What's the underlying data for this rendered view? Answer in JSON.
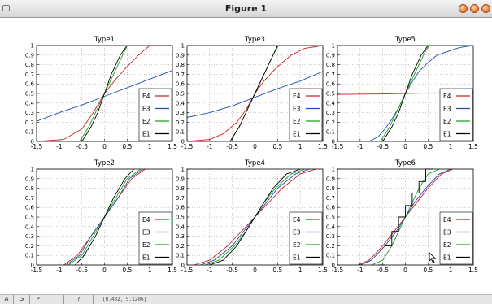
{
  "window": {
    "title": "Figure 1"
  },
  "statusbar": {
    "buttons": [
      "A",
      "G",
      "P",
      "",
      "?"
    ],
    "coords": "[0.432, 5.1206]"
  },
  "colors": {
    "E1": "#000000",
    "E2": "#1aa51a",
    "E3": "#1f4fb0",
    "E4": "#d42020"
  },
  "chart_data": [
    {
      "type": "line",
      "title": "Type1",
      "xlim": [
        -1.5,
        1.5
      ],
      "ylim": [
        0,
        1
      ],
      "xticks": [
        -1.5,
        -1,
        -0.5,
        0,
        0.5,
        1,
        1.5
      ],
      "yticks": [
        0,
        0.1,
        0.2,
        0.3,
        0.4,
        0.5,
        0.6,
        0.7,
        0.8,
        0.9,
        1
      ],
      "grid": true,
      "legend": "bottom-right",
      "series": [
        {
          "name": "E4",
          "x": [
            -1.5,
            -0.9,
            -0.5,
            -0.25,
            0,
            0.25,
            0.5,
            0.75,
            1,
            1.5
          ],
          "y": [
            0,
            0.02,
            0.13,
            0.3,
            0.5,
            0.65,
            0.78,
            0.9,
            1,
            1
          ]
        },
        {
          "name": "E3",
          "x": [
            -1.5,
            -1,
            -0.5,
            0,
            0.5,
            1,
            1.5
          ],
          "y": [
            0.21,
            0.3,
            0.38,
            0.47,
            0.56,
            0.65,
            0.74
          ]
        },
        {
          "name": "E2",
          "x": [
            -0.55,
            -0.35,
            -0.2,
            0,
            0.2,
            0.4,
            0.5
          ],
          "y": [
            0,
            0.15,
            0.3,
            0.5,
            0.7,
            0.9,
            1
          ]
        },
        {
          "name": "E1",
          "x": [
            -0.5,
            -0.3,
            -0.15,
            0,
            0.15,
            0.35,
            0.5
          ],
          "y": [
            0,
            0.15,
            0.3,
            0.5,
            0.7,
            0.9,
            1
          ]
        }
      ]
    },
    {
      "type": "line",
      "title": "Type3",
      "xlim": [
        -1.5,
        1.5
      ],
      "ylim": [
        0,
        1
      ],
      "xticks": [
        -1.5,
        -1,
        -0.5,
        0,
        0.5,
        1,
        1.5
      ],
      "yticks": [
        0,
        0.1,
        0.2,
        0.3,
        0.4,
        0.5,
        0.6,
        0.7,
        0.8,
        0.9,
        1
      ],
      "grid": true,
      "legend": "bottom-right",
      "series": [
        {
          "name": "E4",
          "x": [
            -1.5,
            -1,
            -0.7,
            -0.4,
            -0.2,
            0,
            0.2,
            0.5,
            0.8,
            1.1,
            1.5
          ],
          "y": [
            0,
            0.02,
            0.08,
            0.2,
            0.33,
            0.5,
            0.63,
            0.78,
            0.9,
            0.97,
            1
          ]
        },
        {
          "name": "E3",
          "x": [
            -1.5,
            -1,
            -0.5,
            0,
            0.5,
            1,
            1.5
          ],
          "y": [
            0.25,
            0.3,
            0.37,
            0.46,
            0.55,
            0.63,
            0.73
          ]
        },
        {
          "name": "E2",
          "x": [
            -0.55,
            -0.35,
            -0.2,
            0,
            0.2,
            0.4,
            0.52
          ],
          "y": [
            0,
            0.15,
            0.3,
            0.5,
            0.7,
            0.9,
            1
          ]
        },
        {
          "name": "E1",
          "x": [
            -0.55,
            -0.35,
            -0.2,
            0,
            0.2,
            0.4,
            0.5
          ],
          "y": [
            0,
            0.15,
            0.3,
            0.5,
            0.7,
            0.9,
            1
          ]
        }
      ]
    },
    {
      "type": "line",
      "title": "Type5",
      "xlim": [
        -1.5,
        1.5
      ],
      "ylim": [
        0,
        1
      ],
      "xticks": [
        -1.5,
        -1,
        -0.5,
        0,
        0.5,
        1,
        1.5
      ],
      "yticks": [
        0,
        0.1,
        0.2,
        0.3,
        0.4,
        0.5,
        0.6,
        0.7,
        0.8,
        0.9,
        1
      ],
      "grid": true,
      "legend": "bottom-right",
      "series": [
        {
          "name": "E4",
          "x": [
            -1.5,
            -0.5,
            0,
            0.5,
            1.5
          ],
          "y": [
            0.49,
            0.495,
            0.5,
            0.505,
            0.51
          ]
        },
        {
          "name": "E3",
          "x": [
            -0.8,
            -0.6,
            -0.45,
            -0.3,
            -0.15,
            0,
            0.15,
            0.3,
            0.5,
            0.7,
            1.2,
            1.5
          ],
          "y": [
            0,
            0.05,
            0.13,
            0.23,
            0.35,
            0.5,
            0.62,
            0.73,
            0.82,
            0.9,
            0.98,
            1
          ]
        },
        {
          "name": "E2",
          "x": [
            -0.55,
            -0.35,
            -0.2,
            0,
            0.2,
            0.4,
            0.52
          ],
          "y": [
            0,
            0.15,
            0.3,
            0.5,
            0.7,
            0.9,
            1
          ]
        },
        {
          "name": "E1",
          "x": [
            -0.5,
            -0.3,
            -0.15,
            0,
            0.15,
            0.35,
            0.5
          ],
          "y": [
            0,
            0.15,
            0.3,
            0.5,
            0.7,
            0.9,
            1
          ]
        }
      ]
    },
    {
      "type": "line",
      "title": "Type2",
      "xlim": [
        -1.5,
        1.5
      ],
      "ylim": [
        0,
        1
      ],
      "xticks": [
        -1.5,
        -1,
        -0.5,
        0,
        0.5,
        1,
        1.5
      ],
      "yticks": [
        0,
        0.1,
        0.2,
        0.3,
        0.4,
        0.5,
        0.6,
        0.7,
        0.8,
        0.9,
        1
      ],
      "grid": true,
      "legend": "bottom-right",
      "series": [
        {
          "name": "E4",
          "x": [
            -0.9,
            -0.6,
            -0.3,
            0,
            0.3,
            0.6,
            0.9
          ],
          "y": [
            0,
            0.1,
            0.3,
            0.5,
            0.7,
            0.9,
            1
          ]
        },
        {
          "name": "E3",
          "x": [
            -0.85,
            -0.55,
            -0.3,
            0,
            0.3,
            0.55,
            0.85
          ],
          "y": [
            0,
            0.1,
            0.3,
            0.5,
            0.7,
            0.9,
            1
          ]
        },
        {
          "name": "E2",
          "x": [
            -0.8,
            -0.5,
            -0.25,
            0,
            0.25,
            0.5,
            0.8
          ],
          "y": [
            0,
            0.1,
            0.3,
            0.5,
            0.7,
            0.9,
            1
          ]
        },
        {
          "name": "E1",
          "x": [
            -0.65,
            -0.45,
            -0.2,
            0,
            0.2,
            0.45,
            0.65
          ],
          "y": [
            0,
            0.1,
            0.3,
            0.5,
            0.7,
            0.9,
            1
          ]
        }
      ]
    },
    {
      "type": "line",
      "title": "Type4",
      "xlim": [
        -1.5,
        1.5
      ],
      "ylim": [
        0,
        1
      ],
      "xticks": [
        -1.5,
        -1,
        -0.5,
        0,
        0.5,
        1,
        1.5
      ],
      "yticks": [
        0,
        0.1,
        0.2,
        0.3,
        0.4,
        0.5,
        0.6,
        0.7,
        0.8,
        0.9,
        1
      ],
      "grid": true,
      "legend": "bottom-right",
      "series": [
        {
          "name": "E4",
          "x": [
            -1.35,
            -1,
            -0.6,
            -0.3,
            0,
            0.3,
            0.6,
            1,
            1.35
          ],
          "y": [
            0,
            0.05,
            0.2,
            0.35,
            0.5,
            0.65,
            0.8,
            0.95,
            1
          ]
        },
        {
          "name": "E3",
          "x": [
            -1.2,
            -0.9,
            -0.5,
            -0.25,
            0,
            0.25,
            0.5,
            0.9,
            1.2
          ],
          "y": [
            0,
            0.05,
            0.2,
            0.35,
            0.5,
            0.65,
            0.8,
            0.95,
            1
          ]
        },
        {
          "name": "E2",
          "x": [
            -1.1,
            -0.8,
            -0.45,
            -0.2,
            0,
            0.2,
            0.45,
            0.8,
            1.1
          ],
          "y": [
            0,
            0.05,
            0.2,
            0.35,
            0.5,
            0.65,
            0.8,
            0.95,
            1
          ]
        },
        {
          "name": "E1",
          "x": [
            -1.0,
            -0.7,
            -0.4,
            -0.2,
            0,
            0.2,
            0.4,
            0.7,
            1.0
          ],
          "y": [
            0,
            0.05,
            0.2,
            0.35,
            0.5,
            0.65,
            0.8,
            0.95,
            1
          ]
        }
      ]
    },
    {
      "type": "line",
      "title": "Type6",
      "xlim": [
        -1.5,
        1.5
      ],
      "ylim": [
        0,
        1
      ],
      "xticks": [
        -1.5,
        -1,
        -0.5,
        0,
        0.5,
        1,
        1.5
      ],
      "yticks": [
        0,
        0.1,
        0.2,
        0.3,
        0.4,
        0.5,
        0.6,
        0.7,
        0.8,
        0.9,
        1
      ],
      "grid": true,
      "legend": "bottom-right",
      "series": [
        {
          "name": "E4",
          "x": [
            -1.05,
            -0.8,
            -0.5,
            -0.25,
            0,
            0.25,
            0.5,
            0.8,
            1.05
          ],
          "y": [
            0,
            0.05,
            0.2,
            0.35,
            0.5,
            0.65,
            0.8,
            0.95,
            1
          ]
        },
        {
          "name": "E3",
          "x": [
            -1.0,
            -0.75,
            -0.45,
            -0.2,
            0,
            0.2,
            0.45,
            0.75,
            1.0
          ],
          "y": [
            0,
            0.05,
            0.2,
            0.35,
            0.5,
            0.65,
            0.8,
            0.95,
            1
          ]
        },
        {
          "name": "E2",
          "x": [
            -0.75,
            -0.5,
            -0.3,
            -0.15,
            0,
            0.15,
            0.3,
            0.5,
            0.75
          ],
          "y": [
            0,
            0.05,
            0.2,
            0.35,
            0.5,
            0.65,
            0.8,
            0.95,
            1
          ]
        },
        {
          "name": "E1",
          "x": [
            -0.6,
            -0.45,
            -0.45,
            -0.3,
            -0.3,
            -0.15,
            -0.15,
            0,
            0,
            0.15,
            0.15,
            0.3,
            0.3,
            0.45,
            0.45,
            0.6
          ],
          "y": [
            0,
            0,
            0.2,
            0.2,
            0.35,
            0.35,
            0.5,
            0.5,
            0.62,
            0.62,
            0.75,
            0.75,
            0.87,
            0.87,
            1,
            1
          ]
        }
      ]
    }
  ]
}
